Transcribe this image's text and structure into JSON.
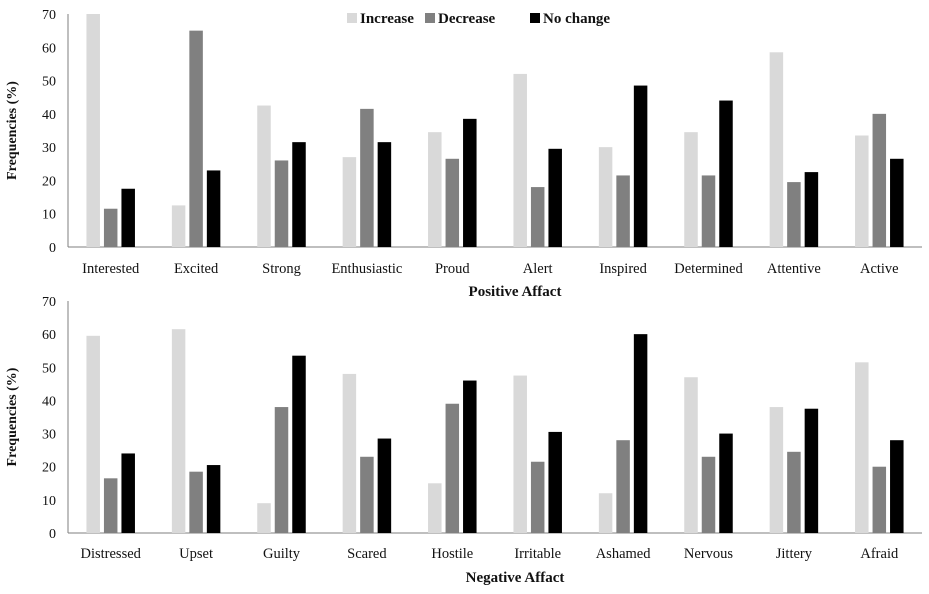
{
  "chart_data": [
    {
      "type": "bar",
      "xlabel": "Positive Affact",
      "ylabel": "Frequencies (%)",
      "ylim": [
        0,
        70
      ],
      "yticks": [
        0,
        10,
        20,
        30,
        40,
        50,
        60,
        70
      ],
      "grid": false,
      "legend": "top-center",
      "categories": [
        "Interested",
        "Excited",
        "Strong",
        "Enthusiastic",
        "Proud",
        "Alert",
        "Inspired",
        "Determined",
        "Attentive",
        "Active"
      ],
      "series": [
        {
          "name": "Increase",
          "color": "#d9d9d9",
          "values": [
            70,
            12.5,
            42.5,
            27,
            34.5,
            52,
            30,
            34.5,
            58.5,
            33.5
          ]
        },
        {
          "name": "Decrease",
          "color": "#808080",
          "values": [
            11.5,
            65,
            26,
            41.5,
            26.5,
            18,
            21.5,
            21.5,
            19.5,
            40
          ]
        },
        {
          "name": "No change",
          "color": "#000000",
          "values": [
            17.5,
            23,
            31.5,
            31.5,
            38.5,
            29.5,
            48.5,
            44,
            22.5,
            26.5
          ]
        }
      ]
    },
    {
      "type": "bar",
      "xlabel": "Negative Affact",
      "ylabel": "Frequencies (%)",
      "ylim": [
        0,
        70
      ],
      "yticks": [
        0,
        10,
        20,
        30,
        40,
        50,
        60,
        70
      ],
      "grid": false,
      "categories": [
        "Distressed",
        "Upset",
        "Guilty",
        "Scared",
        "Hostile",
        "Irritable",
        "Ashamed",
        "Nervous",
        "Jittery",
        "Afraid"
      ],
      "series": [
        {
          "name": "Increase",
          "color": "#d9d9d9",
          "values": [
            59.5,
            61.5,
            9,
            48,
            15,
            47.5,
            12,
            47,
            38,
            51.5
          ]
        },
        {
          "name": "Decrease",
          "color": "#808080",
          "values": [
            16.5,
            18.5,
            38,
            23,
            39,
            21.5,
            28,
            23,
            24.5,
            20
          ]
        },
        {
          "name": "No change",
          "color": "#000000",
          "values": [
            24,
            20.5,
            53.5,
            28.5,
            46,
            30.5,
            60,
            30,
            37.5,
            28
          ]
        }
      ]
    }
  ]
}
